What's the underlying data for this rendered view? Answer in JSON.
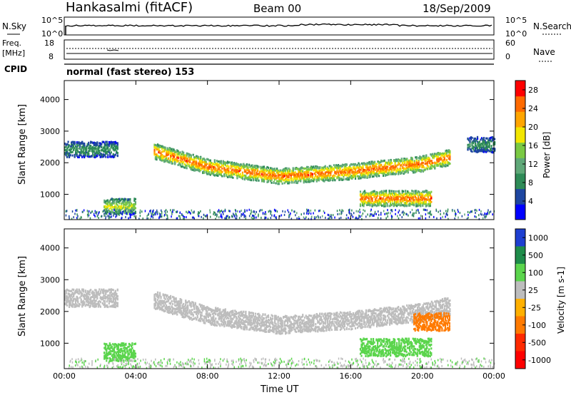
{
  "header": {
    "station": "Hankasalmi (fitACF)",
    "beam": "Beam 00",
    "date": "18/Sep/2009"
  },
  "noise_panel": {
    "left_label": "N.Sky",
    "right_label": "N.Search",
    "ticks_left": [
      "10^5",
      "10^0"
    ],
    "ticks_right": [
      "10^5",
      "10^0"
    ]
  },
  "freq_panel": {
    "left_label_1": "Freq.",
    "left_label_2": "[MHz]",
    "right_label": "Nave",
    "ticks_left": [
      "18",
      "8"
    ],
    "ticks_right": [
      "60",
      "0"
    ]
  },
  "cpid_panel": {
    "label": "CPID",
    "text": "normal (fast stereo) 153"
  },
  "colors": {
    "power": [
      "#0000ff",
      "#1e46a0",
      "#2e8b57",
      "#5fa878",
      "#7ac943",
      "#f2e600",
      "#ffa500",
      "#ff6a00",
      "#ff0000"
    ],
    "velocity": [
      "#1e3fd1",
      "#1e8c4a",
      "#5bd54d",
      "#bdbdbd",
      "#ffb000",
      "#ff7a00",
      "#ff2a00",
      "#ff0000"
    ]
  },
  "chart_data": [
    {
      "type": "heatmap",
      "panel": "power",
      "ylabel": "Slant Range [km]",
      "xlabel": "",
      "y_ticks": [
        "4000",
        "3000",
        "2000",
        "1000"
      ],
      "x_ticks": [
        "00:00",
        "04:00",
        "08:00",
        "12:00",
        "16:00",
        "20:00",
        "00:00"
      ],
      "xlim": [
        0,
        24
      ],
      "ylim": [
        200,
        4600
      ],
      "colorbar": {
        "label": "Power [dB]",
        "ticks": [
          "28",
          "24",
          "20",
          "16",
          "12",
          "8",
          "4"
        ],
        "range": [
          0,
          30
        ]
      },
      "features": [
        {
          "x_start_h": 0.0,
          "x_end_h": 3.0,
          "range_km": 2450,
          "peak_db": 10
        },
        {
          "x_start_h": 2.2,
          "x_end_h": 4.0,
          "range_km": 650,
          "peak_db": 18
        },
        {
          "x_start_h": 5.0,
          "x_end_h": 21.5,
          "range_km_curve": [
            [
              5,
              2400
            ],
            [
              8,
              1900
            ],
            [
              12,
              1600
            ],
            [
              16,
              1750
            ],
            [
              20,
              2000
            ],
            [
              21.5,
              2200
            ]
          ],
          "peak_db": 26
        },
        {
          "x_start_h": 16.5,
          "x_end_h": 20.5,
          "range_km": 900,
          "peak_db": 26
        },
        {
          "x_start_h": 22.5,
          "x_end_h": 24.0,
          "range_km": 2600,
          "peak_db": 10
        }
      ]
    },
    {
      "type": "heatmap",
      "panel": "velocity",
      "ylabel": "Slant Range [km]",
      "xlabel": "Time UT",
      "y_ticks": [
        "4000",
        "3000",
        "2000",
        "1000"
      ],
      "x_ticks": [
        "00:00",
        "04:00",
        "08:00",
        "12:00",
        "16:00",
        "20:00",
        "00:00"
      ],
      "xlim": [
        0,
        24
      ],
      "ylim": [
        200,
        4600
      ],
      "colorbar": {
        "label": "Velocity [m s-1]",
        "ticks": [
          "1000",
          "500",
          "100",
          "25",
          "-25",
          "-100",
          "-500",
          "-1000"
        ]
      },
      "features": [
        {
          "x_start_h": 0.0,
          "x_end_h": 3.0,
          "range_km": 2450,
          "velocity_ms": 0
        },
        {
          "x_start_h": 2.2,
          "x_end_h": 4.0,
          "range_km": 750,
          "velocity_ms": 200
        },
        {
          "x_start_h": 5.0,
          "x_end_h": 21.5,
          "range_km_curve": [
            [
              5,
              2400
            ],
            [
              8,
              1900
            ],
            [
              12,
              1600
            ],
            [
              16,
              1750
            ],
            [
              20,
              2000
            ],
            [
              21.5,
              2200
            ]
          ],
          "velocity_ms": 0
        },
        {
          "x_start_h": 16.5,
          "x_end_h": 20.5,
          "range_km": 900,
          "velocity_ms": 200
        },
        {
          "x_start_h": 19.5,
          "x_end_h": 21.5,
          "range_km": 1700,
          "velocity_ms": -300
        }
      ]
    }
  ]
}
